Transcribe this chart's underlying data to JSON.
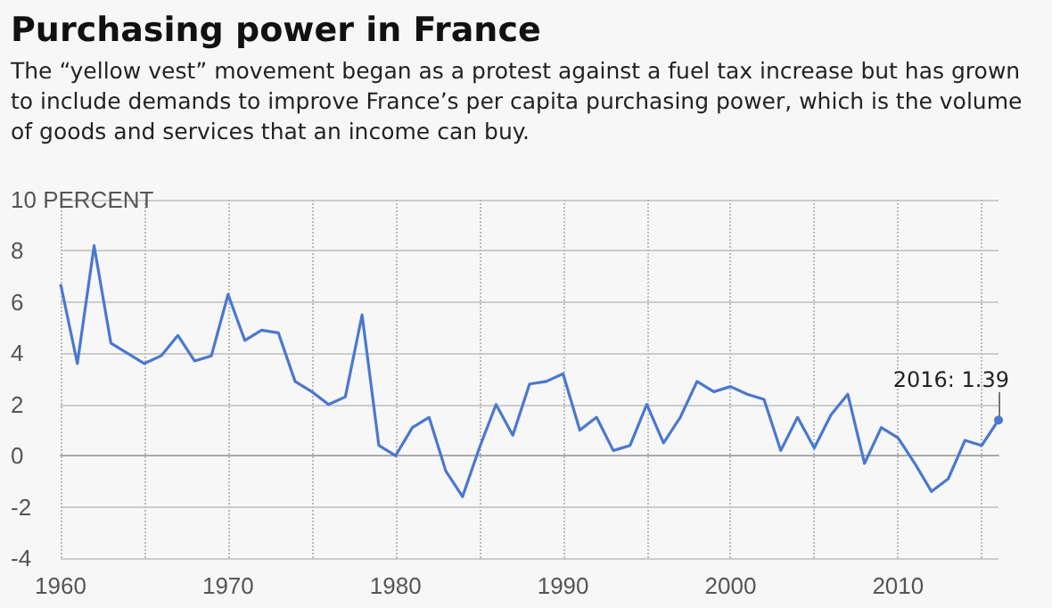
{
  "chart_data": {
    "type": "line",
    "title": "Purchasing power in France",
    "subtitle": "The “yellow vest” movement began as a protest against a fuel tax increase but has grown to include demands to improve France’s per capita purchasing power, which is the volume of goods and services that an income can buy.",
    "x": [
      1960,
      1961,
      1962,
      1963,
      1964,
      1965,
      1966,
      1967,
      1968,
      1969,
      1970,
      1971,
      1972,
      1973,
      1974,
      1975,
      1976,
      1977,
      1978,
      1979,
      1980,
      1981,
      1982,
      1983,
      1984,
      1985,
      1986,
      1987,
      1988,
      1989,
      1990,
      1991,
      1992,
      1993,
      1994,
      1995,
      1996,
      1997,
      1998,
      1999,
      2000,
      2001,
      2002,
      2003,
      2004,
      2005,
      2006,
      2007,
      2008,
      2009,
      2010,
      2011,
      2012,
      2013,
      2014,
      2015,
      2016
    ],
    "series": [
      {
        "color": "#4a78cf",
        "values": [
          6.7,
          3.6,
          8.2,
          4.4,
          4.0,
          3.6,
          3.9,
          4.7,
          3.7,
          3.9,
          6.3,
          4.5,
          4.9,
          4.8,
          2.9,
          2.5,
          2.0,
          2.3,
          5.5,
          0.4,
          0.0,
          1.1,
          1.5,
          -0.6,
          -1.6,
          0.3,
          2.0,
          0.8,
          2.8,
          2.9,
          3.2,
          1.0,
          1.5,
          0.2,
          0.4,
          2.0,
          0.5,
          1.5,
          2.9,
          2.5,
          2.7,
          2.4,
          2.2,
          0.2,
          1.5,
          0.3,
          1.6,
          2.4,
          -0.3,
          1.1,
          0.7,
          -0.3,
          -1.4,
          -0.9,
          0.6,
          0.4,
          1.39
        ]
      }
    ],
    "xlim": [
      1960,
      2016
    ],
    "xticks": [
      1960,
      {
        "value": 1965,
        "label": null
      },
      1970,
      {
        "value": 1975,
        "label": null
      },
      1980,
      {
        "value": 1985,
        "label": null
      },
      1990,
      {
        "value": 1995,
        "label": null
      },
      2000,
      {
        "value": 2005,
        "label": null
      },
      2010,
      {
        "value": 2015,
        "label": null
      }
    ],
    "ylim": [
      -4,
      10
    ],
    "yticks": [
      -4,
      -2,
      0,
      2,
      4,
      6,
      8,
      {
        "value": 10,
        "label": "10 PERCENT"
      }
    ],
    "grid": true,
    "marker": "none",
    "line_style": "solid",
    "annotations": [
      {
        "text": "2016: 1.39",
        "x": 2016,
        "y": 1.39
      }
    ]
  }
}
